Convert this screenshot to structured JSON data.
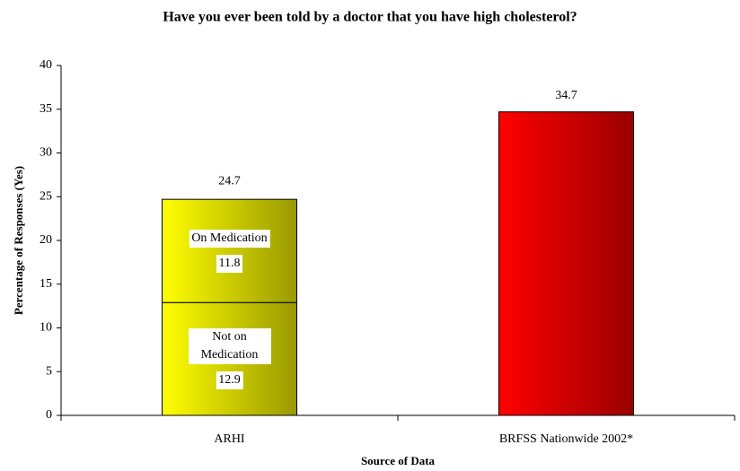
{
  "chart_data": {
    "type": "stacked_bar",
    "title": "Have you ever been told by a doctor that you have high cholesterol?",
    "y_label": "Percentage of Responses (Yes)",
    "x_label": "Source of Data",
    "categories": [
      "ARHI",
      "BRFSS Nationwide 2002*"
    ],
    "series": [
      {
        "name": "Not on Medication",
        "color": "#ffff00",
        "values": [
          12.9,
          null
        ]
      },
      {
        "name": "On Medication",
        "color": "#ffff00",
        "values": [
          11.8,
          null
        ]
      },
      {
        "color": "#ff0000",
        "values": [
          null,
          34.7
        ]
      }
    ],
    "totals": [
      24.7,
      null
    ],
    "ylim": [
      0,
      40
    ],
    "yticks": [
      0,
      5,
      10,
      15,
      20,
      25,
      30,
      35,
      40
    ]
  }
}
